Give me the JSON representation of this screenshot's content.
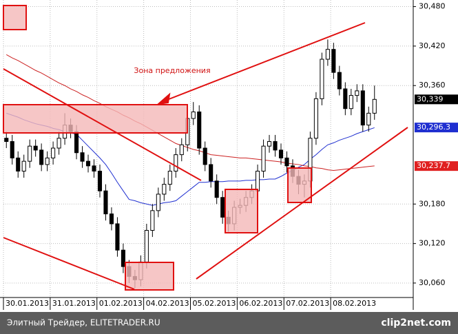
{
  "chart_data": {
    "type": "candlestick",
    "annotation": "Зона предложения",
    "footer": "Элитный Трейдер, ELITETRADER.RU",
    "watermark": "clip2net.com",
    "ylim": [
      30038,
      30490
    ],
    "yticks": [
      {
        "value": 30480,
        "label": "30,480"
      },
      {
        "value": 30420,
        "label": "30,420"
      },
      {
        "value": 30360,
        "label": "30,360"
      },
      {
        "value": 30180,
        "label": "30,180"
      },
      {
        "value": 30120,
        "label": "30,120"
      },
      {
        "value": 30060,
        "label": "30,060"
      }
    ],
    "grid": true,
    "up_color": "#ffffff",
    "down_color": "#000000",
    "categories": [
      "30.01.2013",
      null,
      null,
      null,
      null,
      null,
      null,
      null,
      "31.01.2013",
      null,
      null,
      null,
      null,
      null,
      null,
      null,
      "01.02.2013",
      null,
      null,
      null,
      null,
      null,
      null,
      null,
      "04.02.2013",
      null,
      null,
      null,
      null,
      null,
      null,
      null,
      "05.02.2013",
      null,
      null,
      null,
      null,
      null,
      null,
      null,
      "06.02.2013",
      null,
      null,
      null,
      null,
      null,
      null,
      null,
      "07.02.2013",
      null,
      null,
      null,
      null,
      null,
      null,
      null,
      "08.02.2013",
      null,
      null,
      null,
      null,
      null,
      null,
      null
    ],
    "open": [
      30280,
      30275,
      30250,
      30230,
      30245,
      30268,
      30262,
      30240,
      30250,
      30265,
      30280,
      30300,
      30290,
      30258,
      30245,
      30238,
      30230,
      30200,
      30165,
      30150,
      30110,
      30085,
      30070,
      30065,
      30092,
      30140,
      30170,
      30195,
      30210,
      30230,
      30255,
      30270,
      30310,
      30320,
      30265,
      30240,
      30215,
      30190,
      30160,
      30150,
      30175,
      30178,
      30190,
      30200,
      30230,
      30268,
      30275,
      30262,
      30250,
      30238,
      30222,
      30210,
      30215,
      30280,
      30340,
      30400,
      30415,
      30380,
      30355,
      30325,
      30345,
      30352,
      30300,
      30318
    ],
    "high": [
      30290,
      30285,
      30260,
      30255,
      30278,
      30278,
      30272,
      30260,
      30275,
      30290,
      30318,
      30310,
      30300,
      30268,
      30255,
      30248,
      30240,
      30210,
      30175,
      30160,
      30120,
      30095,
      30080,
      30102,
      30150,
      30180,
      30205,
      30220,
      30240,
      30265,
      30280,
      30320,
      30335,
      30330,
      30275,
      30250,
      30225,
      30200,
      30170,
      30185,
      30188,
      30200,
      30210,
      30240,
      30278,
      30285,
      30285,
      30272,
      30260,
      30248,
      30232,
      30225,
      30290,
      30350,
      30410,
      30430,
      30425,
      30390,
      30365,
      30355,
      30362,
      30362,
      30328,
      30360
    ],
    "low": [
      30265,
      30240,
      30220,
      30220,
      30235,
      30252,
      30230,
      30230,
      30240,
      30255,
      30270,
      30280,
      30248,
      30235,
      30228,
      30220,
      30190,
      30155,
      30140,
      30100,
      30075,
      30060,
      30052,
      30055,
      30082,
      30130,
      30160,
      30185,
      30200,
      30220,
      30245,
      30260,
      30300,
      30255,
      30230,
      30205,
      30180,
      30150,
      30138,
      30140,
      30165,
      30168,
      30180,
      30190,
      30220,
      30258,
      30252,
      30240,
      30228,
      30212,
      30195,
      30190,
      30205,
      30270,
      30330,
      30390,
      30370,
      30345,
      30315,
      30315,
      30335,
      30290,
      30290,
      30308
    ],
    "close": [
      30275,
      30250,
      30230,
      30245,
      30268,
      30262,
      30240,
      30250,
      30265,
      30280,
      30300,
      30290,
      30258,
      30245,
      30238,
      30230,
      30200,
      30165,
      30150,
      30110,
      30085,
      30070,
      30065,
      30092,
      30140,
      30170,
      30195,
      30210,
      30230,
      30255,
      30270,
      30310,
      30320,
      30265,
      30240,
      30215,
      30190,
      30160,
      30150,
      30175,
      30178,
      30190,
      30200,
      30230,
      30268,
      30275,
      30262,
      30250,
      30238,
      30222,
      30210,
      30215,
      30280,
      30340,
      30400,
      30415,
      30380,
      30355,
      30325,
      30345,
      30352,
      30300,
      30318,
      30339
    ],
    "series": [
      {
        "color": "#1f2fd0",
        "values": [
          30318,
          30315,
          30312,
          30308,
          30305,
          30302,
          30300,
          30298,
          30295,
          30293,
          30290,
          30288,
          30286,
          30277,
          30268,
          30259,
          30250,
          30240,
          30227,
          30213,
          30200,
          30187,
          30185,
          30182,
          30180,
          30178,
          30180,
          30182,
          30183,
          30185,
          30192,
          30199,
          30206,
          30213,
          30213,
          30214,
          30214,
          30214,
          30215,
          30215,
          30215,
          30216,
          30216,
          30217,
          30217,
          30218,
          30218,
          30222,
          30227,
          30231,
          30236,
          30240,
          30248,
          30255,
          30263,
          30270,
          30273,
          30277,
          30280,
          30283,
          30287,
          30290,
          30293,
          30296
        ]
      },
      {
        "color": "#cc2020",
        "values": [
          30407,
          30402,
          30398,
          30393,
          30388,
          30383,
          30379,
          30374,
          30369,
          30364,
          30360,
          30355,
          30351,
          30346,
          30342,
          30337,
          30333,
          30328,
          30324,
          30320,
          30315,
          30311,
          30306,
          30302,
          30297,
          30292,
          30287,
          30282,
          30277,
          30272,
          30269,
          30266,
          30263,
          30261,
          30258,
          30255,
          30254,
          30253,
          30252,
          30251,
          30250,
          30250,
          30249,
          30248,
          30247,
          30246,
          30245,
          30244,
          30242,
          30241,
          30240,
          30238,
          30237,
          30235,
          30234,
          30232,
          30231,
          30232,
          30233,
          30234,
          30235,
          30236,
          30237,
          30238
        ]
      }
    ],
    "price_labels": [
      {
        "value": 30339,
        "label": "30,339",
        "color": "#000000"
      },
      {
        "value": 30296.3,
        "label": "30,296.3",
        "color": "#1f2fd0"
      },
      {
        "value": 30237.7,
        "label": "30,237.7",
        "color": "#e02020"
      }
    ]
  }
}
